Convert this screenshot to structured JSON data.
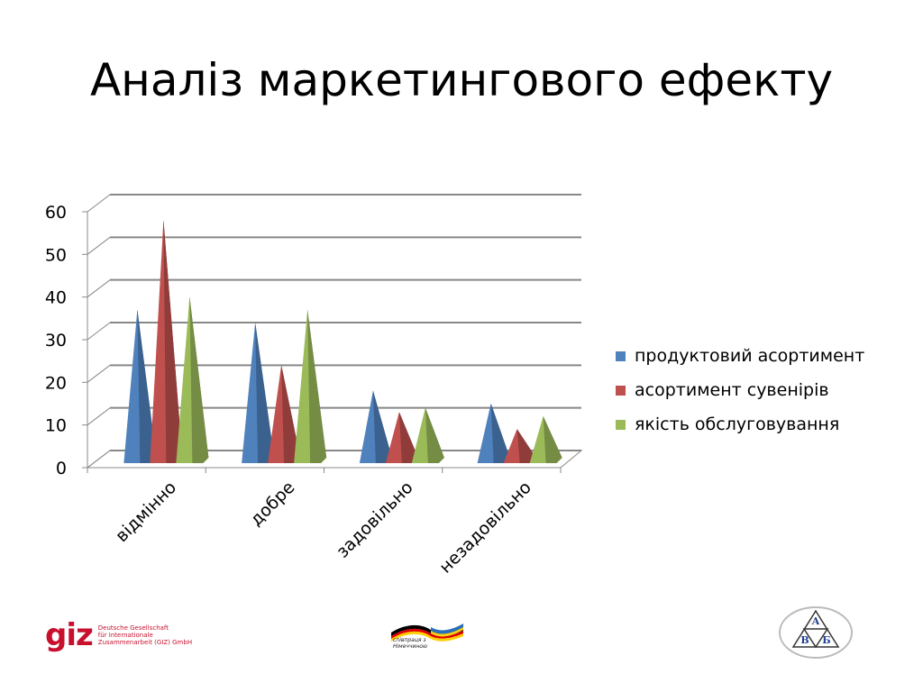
{
  "title": "Аналіз маркетингового ефекту",
  "chart_data": {
    "type": "bar",
    "style": "3d-cone",
    "categories": [
      "відмінно",
      "добре",
      "задовільно",
      "незадовільно"
    ],
    "series": [
      {
        "name": "продуктовий асортимент",
        "values": [
          36,
          33,
          17,
          14
        ],
        "color": "#4f81bd"
      },
      {
        "name": "асортимент сувенірів",
        "values": [
          57,
          23,
          12,
          8
        ],
        "color": "#c0504d"
      },
      {
        "name": "якість обслуговування",
        "values": [
          39,
          36,
          13,
          11
        ],
        "color": "#9bbb59"
      }
    ],
    "ylim": [
      0,
      60
    ],
    "yticks": [
      0,
      10,
      20,
      30,
      40,
      50,
      60
    ],
    "grid": true,
    "legend": "right"
  },
  "footer": {
    "giz_mark": "giz",
    "giz_lines": [
      "Deutsche Gesellschaft",
      "für Internationale",
      "Zusammenarbeit (GIZ) GmbH"
    ],
    "coop_text": [
      "співпраця з",
      "Німеччиною"
    ],
    "avb_letters": [
      "А",
      "В",
      "Б"
    ]
  }
}
